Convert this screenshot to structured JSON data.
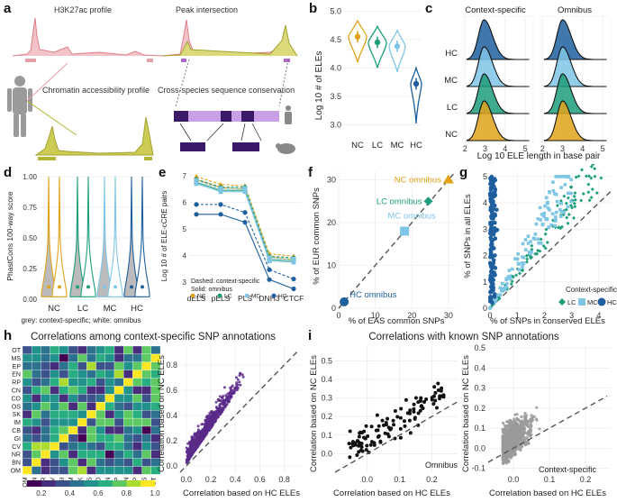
{
  "figure": {
    "panel_letters": {
      "a": "a",
      "b": "b",
      "c": "c",
      "d": "d",
      "e": "e",
      "f": "f",
      "g": "g",
      "h": "h",
      "i": "i"
    }
  },
  "panel_a": {
    "labels": {
      "h3k27ac": "H3K27ac profile",
      "peak": "Peak intersection",
      "chromatin": "Chromatin accessibility profile",
      "conservation": "Cross-species sequence conservation"
    },
    "colors": {
      "pink": "#e8a0a8",
      "olive": "#b5b534",
      "purple": "#5a2d82",
      "lavender": "#c39be0"
    }
  },
  "panel_b": {
    "ylabel": "Log 10 # of ELEs",
    "yticks": [
      "3.0",
      "3.5",
      "4.0",
      "4.5",
      "5.0"
    ],
    "categories": [
      "NC",
      "LC",
      "MC",
      "HC"
    ],
    "colors": [
      "#e0a31b",
      "#1e9e7b",
      "#7fc6e6",
      "#1f5f9e"
    ]
  },
  "panel_c": {
    "col_titles": [
      "Context-specific",
      "Omnibus"
    ],
    "rows": [
      "HC",
      "MC",
      "LC",
      "NC"
    ],
    "xticks": [
      "2",
      "3",
      "4",
      "5"
    ],
    "xlabel": "Log 10 ELE length in base pair"
  },
  "panel_d": {
    "ylabel": "PhastCons 100-way score",
    "yticks": [
      "0.00",
      "0.25",
      "0.50",
      "0.75",
      "1.00"
    ],
    "categories": [
      "NC",
      "LC",
      "MC",
      "HC"
    ],
    "caption": "grey: context-specific; white: omnibus"
  },
  "panel_e": {
    "ylabel": "Log 10 # of ELE-cCRE pairs",
    "yticks": [
      "3",
      "4",
      "5",
      "6",
      "7"
    ],
    "categories": [
      "dELS",
      "pELS",
      "PLS",
      "DNH3",
      "CTCF"
    ],
    "legend_title1": "Dashed: context-specific",
    "legend_title2": "Solid: omnibus",
    "legend_items": [
      "NC",
      "LC",
      "MC",
      "HC"
    ]
  },
  "panel_f": {
    "xlabel": "% of EAS common SNPs",
    "ylabel": "% of EUR common SNPs",
    "xticks": [
      "0",
      "10",
      "20",
      "30"
    ],
    "yticks": [
      "0",
      "10",
      "20",
      "30"
    ],
    "annotations": [
      "NC omnibus",
      "LC omnibus",
      "MC omnibus",
      "HC omnibus"
    ]
  },
  "panel_g": {
    "xlabel": "% of SNPs in conserved ELEs",
    "ylabel": "% of SNPs in all ELEs",
    "xticks": [
      "0",
      "1",
      "2",
      "3",
      "4"
    ],
    "yticks": [
      "0",
      "1",
      "2",
      "3",
      "4",
      "5"
    ],
    "legend_title": "Context-specific",
    "legend_items": [
      "LC",
      "MC",
      "HC"
    ]
  },
  "panel_h": {
    "title": "Correlations among context-specific SNP annotations",
    "rows": [
      "OT",
      "MS",
      "EP",
      "EN",
      "RP",
      "CN",
      "CO",
      "OS",
      "SK",
      "IM",
      "CB",
      "GI",
      "CV",
      "NR",
      "BN",
      "OM"
    ],
    "cols": [
      "OM",
      "BN",
      "NR",
      "CV",
      "GI",
      "IM",
      "SK",
      "OS",
      "CO",
      "CN",
      "RP",
      "EN",
      "EP",
      "MS",
      "OT"
    ],
    "colorbar_ticks": [
      "0.2",
      "0.4",
      "0.6",
      "0.8",
      "1.0"
    ],
    "scatter_xlabel": "Correlation based on HC ELEs",
    "scatter_ylabel": "Correlation based on NC ELEs",
    "scatter_xticks": [
      "0.0",
      "0.2",
      "0.4",
      "0.6",
      "0.8"
    ],
    "scatter_yticks": [
      "0.0",
      "0.2",
      "0.4",
      "0.6",
      "0.8"
    ]
  },
  "panel_i": {
    "title": "Correlations with known SNP annotations",
    "left_xlabel": "Correlation based on HC ELEs",
    "left_ylabel": "Correlation based on NC ELEs",
    "left_xticks": [
      "0.0",
      "0.1",
      "0.2"
    ],
    "left_yticks": [
      "0.0",
      "0.1",
      "0.2",
      "0.3",
      "0.4",
      "0.5"
    ],
    "left_tag": "Omnibus",
    "right_xlabel": "Correlation based on HC ELEs",
    "right_ylabel": "Correlation based on NC ELEs",
    "right_xticks": [
      "0.0",
      "0.1",
      "0.2"
    ],
    "right_yticks": [
      "-0.1",
      "0.0",
      "0.1",
      "0.2",
      "0.3",
      "0.4",
      "0.5"
    ],
    "right_tag": "Context-specific"
  },
  "chart_data": [
    {
      "type": "violin",
      "panel": "b",
      "categories": [
        "NC",
        "LC",
        "MC",
        "HC"
      ],
      "medians": [
        4.55,
        4.45,
        4.38,
        3.72
      ],
      "ylim": [
        2.8,
        5.1
      ],
      "ylabel": "Log 10 # of ELEs"
    },
    {
      "type": "line",
      "panel": "e",
      "categories": [
        "dELS",
        "pELS",
        "PLS",
        "DNH3",
        "CTCF"
      ],
      "series": [
        {
          "name": "NC",
          "values": [
            6.85,
            6.55,
            6.5,
            3.95,
            3.85
          ]
        },
        {
          "name": "LC",
          "values": [
            6.75,
            6.45,
            6.45,
            3.85,
            3.8
          ]
        },
        {
          "name": "MC",
          "values": [
            6.7,
            6.4,
            6.4,
            3.8,
            3.75
          ]
        },
        {
          "name": "HC",
          "values": [
            5.8,
            5.8,
            5.5,
            3.35,
            3.0
          ]
        }
      ],
      "ylim": [
        2.7,
        7.1
      ]
    },
    {
      "type": "scatter",
      "panel": "f",
      "x": [
        30,
        24.5,
        18,
        1.5
      ],
      "y": [
        30,
        25,
        18,
        1.5
      ],
      "labels": [
        "NC omnibus",
        "LC omnibus",
        "MC omnibus",
        "HC omnibus"
      ],
      "xlim": [
        0,
        32
      ],
      "ylim": [
        0,
        32
      ]
    }
  ]
}
